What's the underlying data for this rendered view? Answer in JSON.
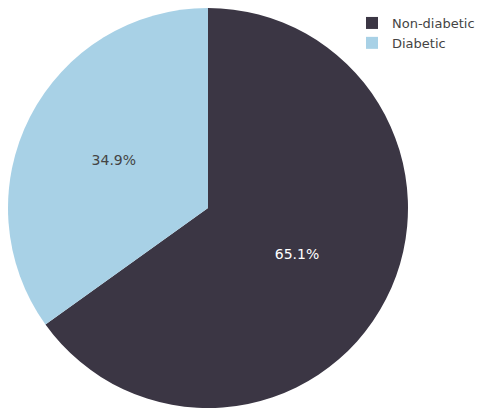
{
  "chart_data": {
    "type": "pie",
    "categories": [
      "Non-diabetic",
      "Diabetic"
    ],
    "values": [
      65.1,
      34.9
    ],
    "value_labels": [
      "65.1%",
      "34.9%"
    ],
    "colors": [
      "#3b3644",
      "#a8d1e6"
    ],
    "data_labels": true,
    "legend": "upper right"
  }
}
